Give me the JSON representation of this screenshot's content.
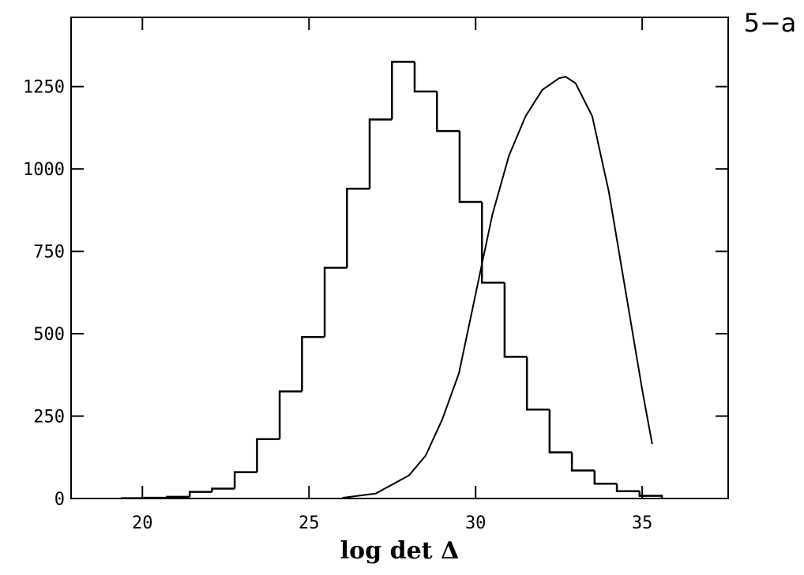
{
  "chart_data": {
    "type": "histogram",
    "xlabel": "log det Δ",
    "annotation": "5−a",
    "bins": [
      19.39,
      20.07,
      20.74,
      21.42,
      22.09,
      22.77,
      23.44,
      24.12,
      24.79,
      25.47,
      26.14,
      26.82,
      27.49,
      28.17,
      28.84,
      29.52,
      30.19,
      30.87,
      31.54,
      32.22,
      32.89,
      33.57,
      34.24,
      34.92,
      35.59
    ],
    "counts": [
      1,
      2,
      5,
      20,
      30,
      80,
      180,
      325,
      490,
      700,
      940,
      1150,
      1325,
      1235,
      1115,
      900,
      655,
      430,
      270,
      140,
      85,
      45,
      22,
      8
    ],
    "color": "#000000",
    "curve": {
      "x": [
        26.0,
        27.0,
        28.0,
        28.5,
        29.0,
        29.5,
        30.0,
        30.5,
        31.0,
        31.5,
        32.0,
        32.5,
        32.7,
        33.0,
        33.5,
        34.0,
        34.5,
        35.0,
        35.3
      ],
      "y": [
        2,
        15,
        70,
        130,
        240,
        380,
        620,
        860,
        1040,
        1160,
        1240,
        1275,
        1280,
        1260,
        1160,
        930,
        630,
        330,
        165
      ],
      "color": "#000000"
    },
    "xlim": [
      17.86,
      37.58
    ],
    "ylim": [
      0,
      1460
    ],
    "xticks": [
      20,
      25,
      30,
      35
    ],
    "yticks": [
      0,
      250,
      500,
      750,
      1000,
      1250
    ]
  }
}
